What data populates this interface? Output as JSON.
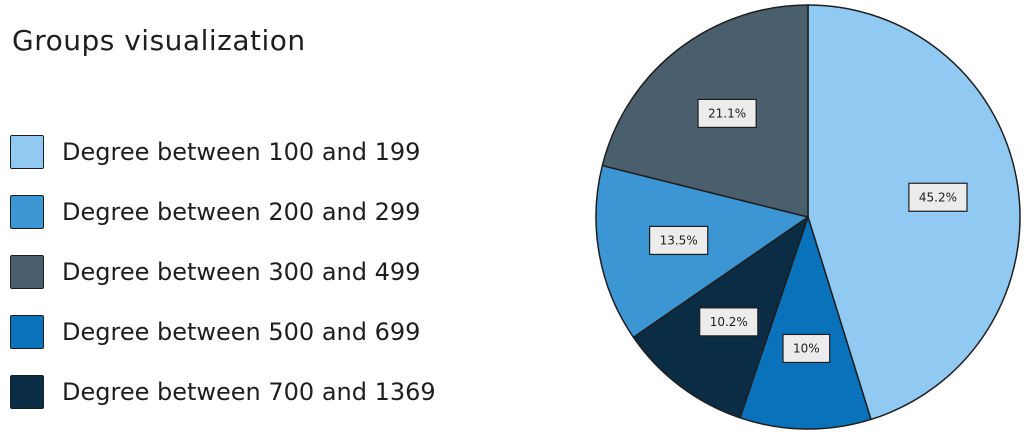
{
  "title": "Groups visualization",
  "legend": {
    "items": [
      {
        "label": "Degree between 100 and 199",
        "color": "#90CAF2"
      },
      {
        "label": "Degree between 200 and 299",
        "color": "#3B96D3"
      },
      {
        "label": "Degree between 300 and 499",
        "color": "#4A5F6E"
      },
      {
        "label": "Degree between 500 and 699",
        "color": "#0A72BA"
      },
      {
        "label": "Degree between 700 and 1369",
        "color": "#0A2D45"
      }
    ]
  },
  "chart_data": {
    "type": "pie",
    "title": "Groups visualization",
    "legend_position": "left",
    "slices": [
      {
        "label": "Degree between 100 and 199",
        "value": 45.2,
        "display": "45.2%",
        "color": "#90CAF2"
      },
      {
        "label": "Degree between 500 and 699",
        "value": 10.0,
        "display": "10%",
        "color": "#0A72BA"
      },
      {
        "label": "Degree between 700 and 1369",
        "value": 10.2,
        "display": "10.2%",
        "color": "#0A2D45"
      },
      {
        "label": "Degree between 200 and 299",
        "value": 13.5,
        "display": "13.5%",
        "color": "#3B96D3"
      },
      {
        "label": "Degree between 300 and 499",
        "value": 21.1,
        "display": "21.1%",
        "color": "#4A5F6E"
      }
    ]
  }
}
